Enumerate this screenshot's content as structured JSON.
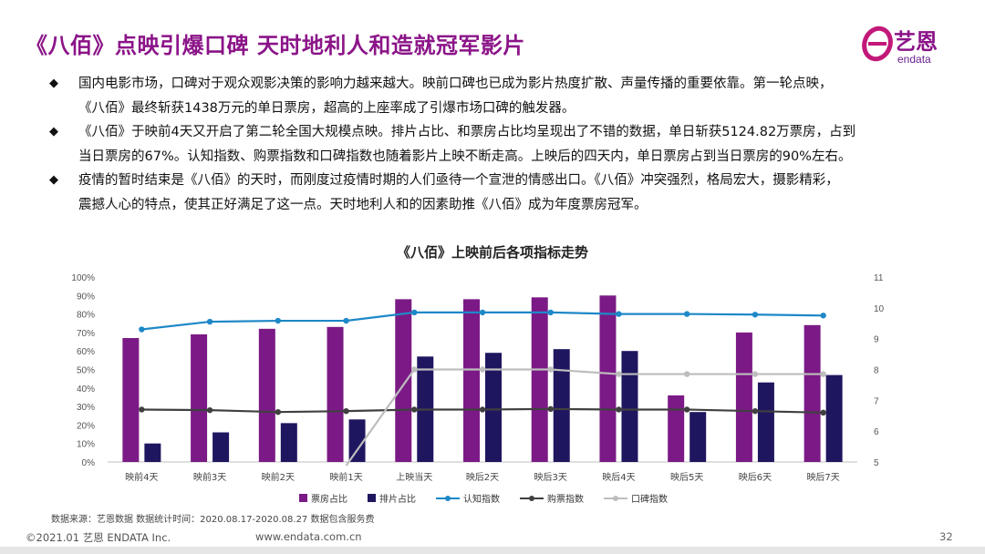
{
  "header": {
    "title": "《八佰》点映引爆口碑 天时地利人和造就冠军影片"
  },
  "logo": {
    "cn": "艺恩",
    "en": "endata"
  },
  "bullets": [
    {
      "line1": "国内电影市场，口碑对于观众观影决策的影响力越来越大。映前口碑也已成为影片热度扩散、声量传播的重要依靠。第一轮点映，",
      "line2": "《八佰》最终斩获1438万元的单日票房，超高的上座率成了引爆市场口碑的触发器。"
    },
    {
      "line1": "《八佰》于映前4天又开启了第二轮全国大规模点映。排片占比、和票房占比均呈现出了不错的数据，单日斩获5124.82万票房，占到",
      "line2": "当日票房的67%。认知指数、购票指数和口碑指数也随着影片上映不断走高。上映后的四天内，单日票房占到当日票房的90%左右。"
    },
    {
      "line1": "疫情的暂时结束是《八佰》的天时，而刚度过疫情时期的人们亟待一个宣泄的情感出口。《八佰》冲突强烈，格局宏大，摄影精彩，",
      "line2": "震撼人心的特点，使其正好满足了这一点。天时地利人和的因素助推《八佰》成为年度票房冠军。"
    }
  ],
  "chart_data": {
    "type": "bar",
    "title": "《八佰》上映前后各项指标走势",
    "categories": [
      "映前4天",
      "映前3天",
      "映前2天",
      "映前1天",
      "上映当天",
      "映后2天",
      "映后3天",
      "映后4天",
      "映后5天",
      "映后6天",
      "映后7天"
    ],
    "left_axis": {
      "min": 0,
      "max": 100,
      "step": 10,
      "unit": "%",
      "ticks": [
        "0%",
        "10%",
        "20%",
        "30%",
        "40%",
        "50%",
        "60%",
        "70%",
        "80%",
        "90%",
        "100%"
      ]
    },
    "right_axis": {
      "min": 5,
      "max": 11,
      "step": 1,
      "ticks": [
        "5",
        "6",
        "7",
        "8",
        "9",
        "10",
        "11"
      ]
    },
    "series": [
      {
        "name": "票房占比",
        "kind": "bar",
        "axis": "left",
        "color": "#7b1a86",
        "values": [
          67,
          69,
          72,
          73,
          88,
          88,
          89,
          90,
          36,
          70,
          74
        ]
      },
      {
        "name": "排片占比",
        "kind": "bar",
        "axis": "left",
        "color": "#1f1660",
        "values": [
          10,
          16,
          21,
          23,
          57,
          59,
          61,
          60,
          27,
          43,
          47
        ]
      },
      {
        "name": "认知指数",
        "kind": "line",
        "axis": "right",
        "color": "#1e88c8",
        "values": [
          9.3,
          9.55,
          9.58,
          9.58,
          9.85,
          9.85,
          9.85,
          9.8,
          9.8,
          9.78,
          9.75
        ]
      },
      {
        "name": "购票指数",
        "kind": "line",
        "axis": "right",
        "color": "#404040",
        "values": [
          6.7,
          6.68,
          6.62,
          6.65,
          6.7,
          6.7,
          6.72,
          6.7,
          6.7,
          6.65,
          6.6
        ]
      },
      {
        "name": "口碑指数",
        "kind": "line",
        "axis": "right",
        "color": "#bdbdbd",
        "values": [
          null,
          null,
          null,
          4.0,
          8.0,
          8.0,
          8.0,
          7.85,
          7.85,
          7.85,
          7.85
        ]
      }
    ],
    "legend_position": "bottom",
    "grid": false
  },
  "footer": {
    "note": "数据来源：艺恩数据    数据统计时间：2020.08.17-2020.08.27  数据包含服务费",
    "copyright": "©2021.01 艺恩 ENDATA Inc.",
    "url": "www.endata.com.cn",
    "page": "32"
  }
}
